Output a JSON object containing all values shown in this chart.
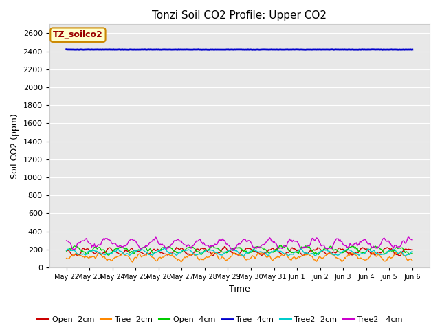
{
  "title": "Tonzi Soil CO2 Profile: Upper CO2",
  "ylabel": "Soil CO2 (ppm)",
  "xlabel": "Time",
  "ylim": [
    0,
    2700
  ],
  "yticks": [
    0,
    200,
    400,
    600,
    800,
    1000,
    1200,
    1400,
    1600,
    1800,
    2000,
    2200,
    2400,
    2600
  ],
  "fig_bg_color": "#ffffff",
  "plot_bg_color": "#e8e8e8",
  "grid_color": "#ffffff",
  "legend_label": "TZ_soilco2",
  "legend_box_facecolor": "#ffffcc",
  "legend_box_edgecolor": "#cc8800",
  "legend_text_color": "#990000",
  "x_tick_labels": [
    "May 22",
    "May 23",
    "May 24",
    "May 25",
    "May 26",
    "May 27",
    "May 28",
    "May 29",
    "May 30",
    "May 31",
    "Jun 1",
    "Jun 2",
    "Jun 3",
    "Jun 4",
    "Jun 5",
    "Jun 6"
  ],
  "series": [
    {
      "label": "Open -2cm",
      "color": "#cc0000",
      "base": 175,
      "amp": 30,
      "noise": 18,
      "lw": 1.0
    },
    {
      "label": "Tree -2cm",
      "color": "#ff8800",
      "base": 120,
      "amp": 30,
      "noise": 22,
      "lw": 1.0
    },
    {
      "label": "Open -4cm",
      "color": "#00cc00",
      "base": 195,
      "amp": 35,
      "noise": 18,
      "lw": 1.0
    },
    {
      "label": "Tree -4cm",
      "color": "#0000cc",
      "base": 2420,
      "amp": 3,
      "noise": 1,
      "lw": 2.0
    },
    {
      "label": "Tree2 -2cm",
      "color": "#00cccc",
      "base": 168,
      "amp": 25,
      "noise": 15,
      "lw": 1.0
    },
    {
      "label": "Tree2 - 4cm",
      "color": "#cc00cc",
      "base": 265,
      "amp": 45,
      "noise": 28,
      "lw": 1.0
    }
  ],
  "title_fontsize": 11,
  "axis_label_fontsize": 9,
  "tick_fontsize": 8,
  "xtick_fontsize": 7,
  "legend_fontsize": 8
}
